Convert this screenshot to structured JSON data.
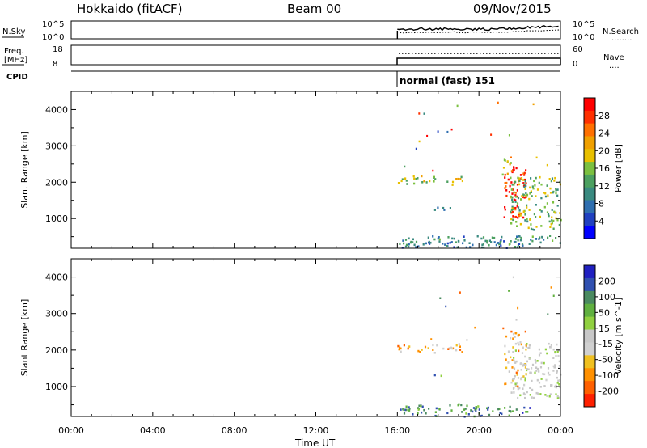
{
  "header": {
    "station": "Hokkaido (fitACF)",
    "beam": "Beam 00",
    "date": "09/Nov/2015"
  },
  "top_panels": {
    "nsky_label": "N.Sky",
    "nsearch_label": "N.Search",
    "nsearch_dots": "........",
    "nsky_ticks": [
      "10^5",
      "10^0"
    ],
    "nsearch_ticks": [
      "10^5",
      "10^0"
    ],
    "freq_label_1": "Freq.",
    "freq_label_2": "[MHz]",
    "freq_ticks": [
      "18",
      "8"
    ],
    "nave_label": "Nave",
    "nave_dots": "....",
    "nave_ticks": [
      "60",
      "0"
    ],
    "cpid_label": "CPID",
    "cpid_value": "normal (fast) 151"
  },
  "colors": {
    "axis": "#000000",
    "power_scale": [
      "#0000ff",
      "#2040c0",
      "#2f6fb0",
      "#3a8a80",
      "#4ca060",
      "#7bc040",
      "#e8c000",
      "#f0a000",
      "#ff7000",
      "#ff3000",
      "#ff0000"
    ],
    "velocity_scale": [
      "#2020c0",
      "#3050b0",
      "#4a8a60",
      "#60b040",
      "#90d040",
      "#c8c8c8",
      "#d0d0d0",
      "#f0c020",
      "#ff9000",
      "#ff6000",
      "#ff2000"
    ]
  },
  "chart_data": [
    {
      "type": "heatmap",
      "name": "power",
      "ylabel": "Slant Range [km]",
      "yticks": [
        "1000",
        "2000",
        "3000",
        "4000"
      ],
      "ylim": [
        180,
        4500
      ],
      "xlim": [
        "00:00",
        "24:00"
      ],
      "colorbar_label": "Power [dB]",
      "colorbar_ticks": [
        "4",
        "8",
        "12",
        "16",
        "20",
        "24",
        "28"
      ],
      "colorbar_range": [
        0,
        32
      ],
      "regions": [
        {
          "t0": 16.0,
          "t1": 22.5,
          "r0": 200,
          "r1": 400,
          "level": 0.25
        },
        {
          "t0": 16.0,
          "t1": 24.0,
          "r0": 300,
          "r1": 550,
          "level": 0.3
        },
        {
          "t0": 16.0,
          "t1": 19.2,
          "r0": 1950,
          "r1": 2200,
          "level": 0.55
        },
        {
          "t0": 17.5,
          "t1": 18.6,
          "r0": 1250,
          "r1": 1350,
          "level": 0.2
        },
        {
          "t0": 21.2,
          "t1": 22.3,
          "r0": 1000,
          "r1": 2500,
          "level": 0.95
        },
        {
          "t0": 21.5,
          "t1": 24.0,
          "r0": 700,
          "r1": 2200,
          "level": 0.45
        },
        {
          "t0": 21.0,
          "t1": 21.6,
          "r0": 2200,
          "r1": 2700,
          "level": 0.6
        }
      ]
    },
    {
      "type": "heatmap",
      "name": "velocity",
      "ylabel": "Slant Range [km]",
      "yticks": [
        "1000",
        "2000",
        "3000",
        "4000"
      ],
      "ylim": [
        180,
        4500
      ],
      "xlim": [
        "00:00",
        "24:00"
      ],
      "colorbar_label": "Velocity [m s^-1]",
      "colorbar_ticks": [
        "200",
        "100",
        "50",
        "15",
        "-15",
        "-50",
        "-100",
        "-200"
      ],
      "colorbar_range": [
        -250,
        250
      ],
      "regions": [
        {
          "t0": 16.0,
          "t1": 22.5,
          "r0": 200,
          "r1": 550,
          "level": 0.2
        },
        {
          "t0": 16.0,
          "t1": 19.2,
          "r0": 1950,
          "r1": 2200,
          "level": 0.7
        },
        {
          "t0": 17.5,
          "t1": 18.6,
          "r0": 1250,
          "r1": 1350,
          "level": 0.3
        },
        {
          "t0": 21.2,
          "t1": 22.3,
          "r0": 1000,
          "r1": 2600,
          "level": 0.7
        },
        {
          "t0": 21.5,
          "t1": 24.0,
          "r0": 700,
          "r1": 2200,
          "level": 0.5
        }
      ]
    }
  ],
  "time_axis": {
    "ticks": [
      "00:00",
      "04:00",
      "08:00",
      "12:00",
      "16:00",
      "20:00",
      "00:00"
    ],
    "label": "Time UT"
  }
}
